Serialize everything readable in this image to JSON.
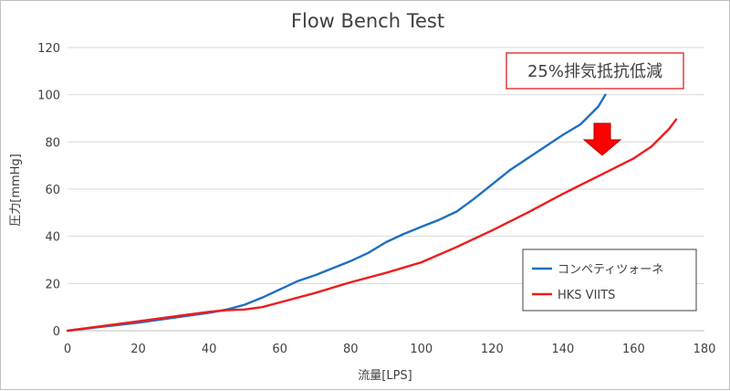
{
  "chart_data": {
    "type": "line",
    "title": "Flow Bench Test",
    "xlabel": "流量[LPS]",
    "ylabel": "圧力[mmHg]",
    "xlim": [
      0,
      180
    ],
    "ylim": [
      0,
      120
    ],
    "x_ticks": [
      0,
      20,
      40,
      60,
      80,
      100,
      120,
      140,
      160,
      180
    ],
    "y_ticks": [
      0,
      20,
      40,
      60,
      80,
      100,
      120
    ],
    "grid": "horizontal",
    "legend_position": "bottom-right",
    "annotation": "25%排気抵抗低減",
    "series": [
      {
        "name": "コンペティツォーネ",
        "color": "#1f6fc0",
        "points": [
          [
            0,
            0
          ],
          [
            10,
            1.7
          ],
          [
            20,
            3.4
          ],
          [
            30,
            5.5
          ],
          [
            40,
            7.6
          ],
          [
            45,
            9
          ],
          [
            50,
            11
          ],
          [
            55,
            14
          ],
          [
            60,
            17.5
          ],
          [
            65,
            21
          ],
          [
            70,
            23.5
          ],
          [
            75,
            26.5
          ],
          [
            80,
            29.5
          ],
          [
            85,
            33
          ],
          [
            90,
            37.5
          ],
          [
            95,
            41
          ],
          [
            100,
            44
          ],
          [
            105,
            47
          ],
          [
            110,
            50.5
          ],
          [
            115,
            56
          ],
          [
            120,
            62
          ],
          [
            125,
            68
          ],
          [
            130,
            73
          ],
          [
            135,
            78
          ],
          [
            140,
            83
          ],
          [
            145,
            87.5
          ],
          [
            150,
            95
          ],
          [
            152,
            100
          ]
        ]
      },
      {
        "name": "HKS VIITS",
        "color": "#ee1c1c",
        "points": [
          [
            0,
            0
          ],
          [
            10,
            2
          ],
          [
            20,
            4
          ],
          [
            30,
            6
          ],
          [
            40,
            8
          ],
          [
            45,
            8.7
          ],
          [
            50,
            9
          ],
          [
            55,
            10
          ],
          [
            60,
            12
          ],
          [
            70,
            16
          ],
          [
            80,
            20.5
          ],
          [
            90,
            24.5
          ],
          [
            100,
            29
          ],
          [
            110,
            35.5
          ],
          [
            120,
            42.5
          ],
          [
            130,
            50
          ],
          [
            140,
            58
          ],
          [
            150,
            65.5
          ],
          [
            160,
            73
          ],
          [
            165,
            78
          ],
          [
            170,
            85.5
          ],
          [
            172,
            89.5
          ]
        ]
      }
    ]
  },
  "annotation_arrow_color": "#ff0000"
}
